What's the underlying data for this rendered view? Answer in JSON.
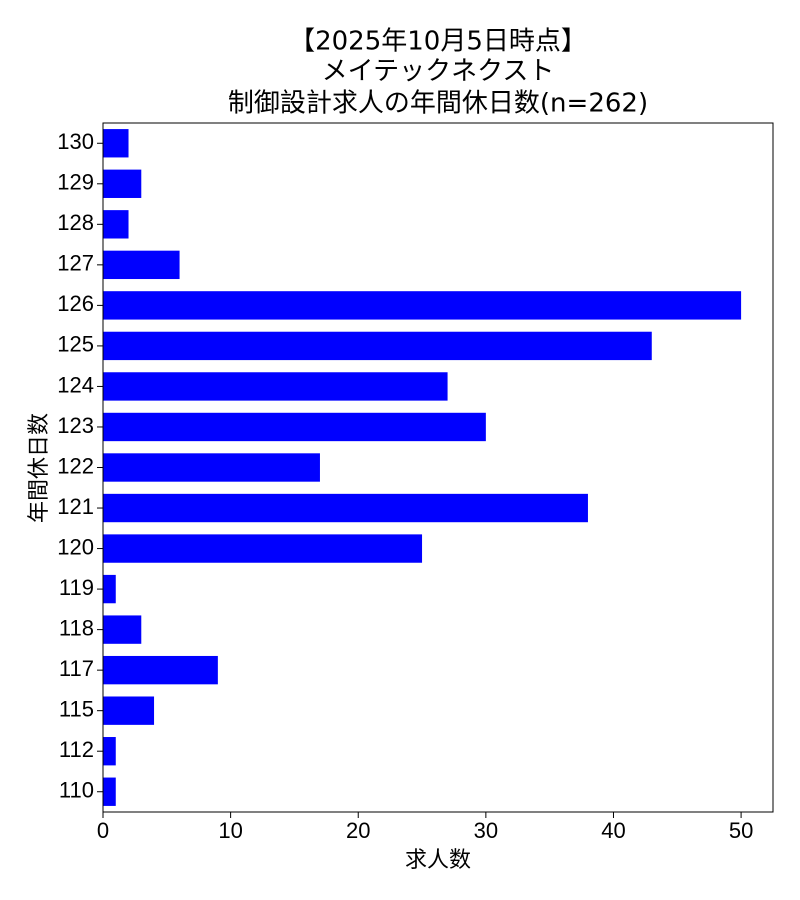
{
  "chart_data": {
    "type": "barh",
    "title": [
      "【2025年10月5日時点】",
      "メイテックネクスト",
      "制御設計求人の年間休日数(n=262)"
    ],
    "xlabel": "求人数",
    "ylabel": "年間休日数",
    "categories": [
      "110",
      "112",
      "115",
      "117",
      "118",
      "119",
      "120",
      "121",
      "122",
      "123",
      "124",
      "125",
      "126",
      "127",
      "128",
      "129",
      "130"
    ],
    "values": [
      1,
      1,
      4,
      9,
      3,
      1,
      25,
      38,
      17,
      30,
      27,
      43,
      50,
      6,
      2,
      3,
      2
    ],
    "color": "#0000ff",
    "xlim": [
      0,
      52.5
    ],
    "xticks": [
      0,
      10,
      20,
      30,
      40,
      50
    ],
    "grid": false
  }
}
